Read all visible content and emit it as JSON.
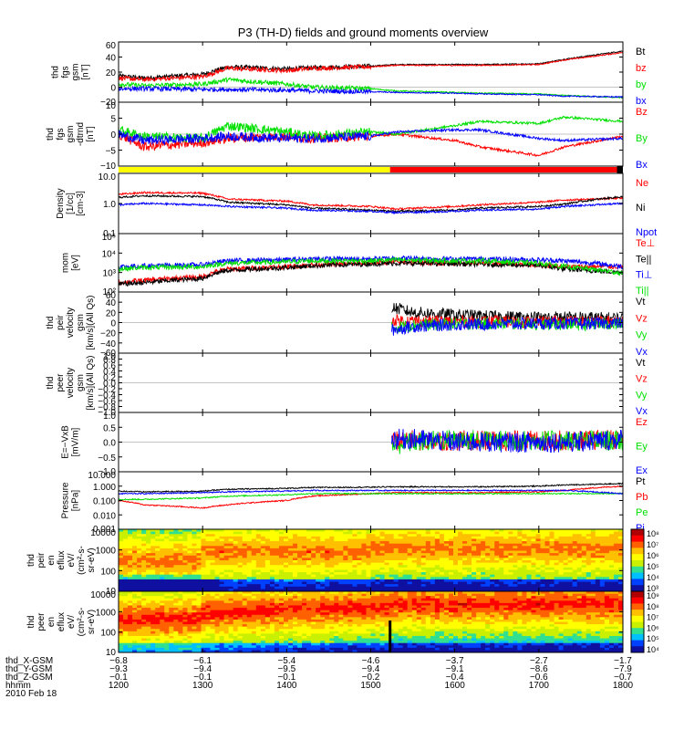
{
  "title": "P3 (TH-D) fields and ground moments overview",
  "colors": {
    "black": "#000000",
    "red": "#ff0000",
    "green": "#00e000",
    "blue": "#0000ff",
    "yellow": "#ffff00"
  },
  "chart_data": [
    {
      "id": "fgs_gsm",
      "type": "line",
      "ylabel": [
        "thd",
        "fgs",
        "gsm",
        "[nT]"
      ],
      "ylim": [
        -20,
        60
      ],
      "yticks": [
        "60",
        "40",
        "20",
        "0",
        "−20"
      ],
      "legend": [
        {
          "name": "Bt",
          "color": "black"
        },
        {
          "name": "bz",
          "color": "red"
        },
        {
          "name": "by",
          "color": "green"
        },
        {
          "name": "bx",
          "color": "blue"
        }
      ],
      "x": [
        1200,
        1230,
        1300,
        1330,
        1400,
        1430,
        1500,
        1530,
        1600,
        1630,
        1700,
        1730,
        1800
      ],
      "series": [
        {
          "name": "Bt",
          "color": "black",
          "values": [
            15,
            12,
            17,
            27,
            24,
            26,
            28,
            30,
            30,
            30,
            31,
            37,
            48
          ]
        },
        {
          "name": "bz",
          "color": "red",
          "values": [
            12,
            10,
            14,
            25,
            22,
            25,
            27,
            29,
            29,
            29,
            30,
            36,
            46
          ]
        },
        {
          "name": "by",
          "color": "green",
          "values": [
            4,
            2,
            4,
            10,
            4,
            0,
            -2,
            -5,
            -7,
            -8,
            -9,
            -11,
            -14
          ]
        },
        {
          "name": "bx",
          "color": "blue",
          "values": [
            -2,
            -2,
            -3,
            -3,
            -4,
            -5,
            -6,
            -7,
            -8,
            -9,
            -10,
            -12,
            -13
          ]
        }
      ]
    },
    {
      "id": "fgs_gsm_dtrnd",
      "type": "line",
      "ylabel": [
        "thd",
        "fgs",
        "gsm",
        "-dtrnd",
        "[nT]"
      ],
      "ylim": [
        -15,
        15
      ],
      "yticks": [
        "10",
        "5",
        "0",
        "−5",
        "−10"
      ],
      "legend": [
        {
          "name": "Bz",
          "color": "red"
        },
        {
          "name": "By",
          "color": "green"
        },
        {
          "name": "Bx",
          "color": "blue"
        }
      ],
      "x": [
        1200,
        1230,
        1300,
        1330,
        1400,
        1430,
        1500,
        1530,
        1600,
        1630,
        1700,
        1730,
        1800
      ],
      "series": [
        {
          "name": "Bz",
          "color": "red",
          "values": [
            0,
            -6,
            -4,
            -2,
            -1,
            -2,
            -1,
            0,
            -3,
            -6,
            -10,
            -6,
            -1
          ]
        },
        {
          "name": "By",
          "color": "green",
          "values": [
            2,
            -1,
            -2,
            4,
            1,
            -1,
            1,
            0,
            4,
            6,
            5,
            8,
            6
          ]
        },
        {
          "name": "Bx",
          "color": "blue",
          "values": [
            0,
            -3,
            -2,
            -1,
            -2,
            -2,
            -1,
            1,
            2,
            2,
            -2,
            -3,
            -2
          ]
        }
      ]
    },
    {
      "id": "mode_bar",
      "type": "bar",
      "segments": [
        {
          "from": 1200,
          "to": 1523,
          "color": "yellow"
        },
        {
          "from": 1523,
          "to": 1800,
          "color": "red"
        }
      ]
    },
    {
      "id": "density",
      "type": "line",
      "ylabel": [
        "Density",
        "[1/cc]",
        "[cm-3]"
      ],
      "ylim": [
        0.1,
        10
      ],
      "log": true,
      "yticks": [
        "10.0",
        "1.0",
        "0.1"
      ],
      "legend": [
        {
          "name": "Ne",
          "color": "red"
        },
        {
          "name": "Ni",
          "color": "black"
        },
        {
          "name": "Npot",
          "color": "blue"
        }
      ],
      "x": [
        1200,
        1230,
        1300,
        1330,
        1400,
        1430,
        1500,
        1530,
        1600,
        1630,
        1700,
        1730,
        1800
      ],
      "series": [
        {
          "name": "Ne",
          "color": "red",
          "values": [
            2,
            2.3,
            2.2,
            1.4,
            1.2,
            0.9,
            0.8,
            0.65,
            0.8,
            0.9,
            1.1,
            1.3,
            1.5
          ]
        },
        {
          "name": "Ni",
          "color": "black",
          "values": [
            1.6,
            1.8,
            1.7,
            1.1,
            0.9,
            0.7,
            0.6,
            0.55,
            0.6,
            0.7,
            0.8,
            0.95,
            1.7
          ]
        },
        {
          "name": "Npot",
          "color": "blue",
          "values": [
            0.9,
            1.0,
            0.9,
            0.8,
            0.7,
            0.6,
            0.55,
            0.5,
            0.55,
            0.6,
            0.65,
            0.8,
            1.0
          ]
        }
      ]
    },
    {
      "id": "temperature",
      "type": "line",
      "ylabel": [
        "mom",
        "[eV]"
      ],
      "ylim": [
        100,
        100000
      ],
      "log": true,
      "yticks": [
        "10⁵",
        "10⁴",
        "10³",
        "10²"
      ],
      "legend": [
        {
          "name": "Te⊥",
          "color": "red"
        },
        {
          "name": "Te||",
          "color": "black"
        },
        {
          "name": "Ti⊥",
          "color": "blue"
        },
        {
          "name": "Ti||",
          "color": "green"
        }
      ],
      "x": [
        1200,
        1230,
        1300,
        1330,
        1400,
        1430,
        1500,
        1530,
        1600,
        1630,
        1700,
        1730,
        1800
      ],
      "series": [
        {
          "name": "Te⊥",
          "color": "red",
          "values": [
            300,
            400,
            600,
            1500,
            2000,
            2500,
            3000,
            3500,
            3000,
            3000,
            2500,
            2000,
            2000
          ]
        },
        {
          "name": "Te||",
          "color": "black",
          "values": [
            250,
            300,
            500,
            1300,
            1800,
            2200,
            2800,
            3000,
            2800,
            2700,
            2300,
            1500,
            1000
          ]
        },
        {
          "name": "Ti⊥",
          "color": "blue",
          "values": [
            2000,
            2200,
            2500,
            4000,
            4500,
            5000,
            5000,
            5500,
            5000,
            5000,
            4500,
            4000,
            2000
          ]
        },
        {
          "name": "Ti||",
          "color": "green",
          "values": [
            1500,
            1800,
            2000,
            3000,
            3500,
            4000,
            4000,
            4500,
            4000,
            4000,
            3000,
            2000,
            900
          ]
        }
      ]
    },
    {
      "id": "peir_velocity",
      "type": "line",
      "ylabel": [
        "thd",
        "peir",
        "velocity",
        "gsm",
        "[km/s](All Qs)"
      ],
      "ylim": [
        -60,
        60
      ],
      "yticks": [
        "60",
        "40",
        "20",
        "0",
        "−20",
        "−40",
        "−60"
      ],
      "legend": [
        {
          "name": "Vt",
          "color": "black"
        },
        {
          "name": "Vz",
          "color": "red"
        },
        {
          "name": "Vy",
          "color": "green"
        },
        {
          "name": "Vx",
          "color": "blue"
        }
      ],
      "x": [
        1525,
        1550,
        1600,
        1650,
        1700,
        1750,
        1800
      ],
      "series": [
        {
          "name": "Vt",
          "color": "black",
          "values": [
            30,
            20,
            15,
            12,
            10,
            10,
            8
          ]
        },
        {
          "name": "Vz",
          "color": "red",
          "values": [
            5,
            3,
            2,
            2,
            1,
            2,
            2
          ]
        },
        {
          "name": "Vy",
          "color": "green",
          "values": [
            -10,
            -5,
            -3,
            -2,
            -3,
            -4,
            -2
          ]
        },
        {
          "name": "Vx",
          "color": "blue",
          "values": [
            -15,
            -8,
            -4,
            -3,
            -2,
            -2,
            -1
          ]
        }
      ]
    },
    {
      "id": "peer_velocity",
      "type": "line",
      "ylabel": [
        "thd",
        "peer",
        "velocity",
        "gsm",
        "[km/s](All Qs)"
      ],
      "ylim": [
        -1,
        1
      ],
      "yticks": [
        "1.0",
        "0.8",
        "0.6",
        "0.4",
        "0.2",
        "0.0",
        "−0.2",
        "−0.4",
        "−0.6",
        "−0.8",
        "−1.0"
      ],
      "legend": [
        {
          "name": "Vt",
          "color": "black"
        },
        {
          "name": "Vz",
          "color": "red"
        },
        {
          "name": "Vy",
          "color": "green"
        },
        {
          "name": "Vx",
          "color": "blue"
        }
      ],
      "x": [],
      "series": []
    },
    {
      "id": "efield",
      "type": "line",
      "ylabel": [
        "E=−VxB",
        "[mV/m]"
      ],
      "ylim": [
        -1,
        1
      ],
      "yticks": [
        "1.0",
        "0.5",
        "0.0",
        "−0.5",
        "−1.0"
      ],
      "legend": [
        {
          "name": "Ez",
          "color": "red"
        },
        {
          "name": "Ey",
          "color": "green"
        },
        {
          "name": "Ex",
          "color": "blue"
        }
      ],
      "x": [
        1525,
        1550,
        1600,
        1650,
        1700,
        1750,
        1800
      ],
      "series": [
        {
          "name": "Ez",
          "color": "red",
          "values": [
            0.05,
            0.05,
            0.05,
            0.05,
            0.05,
            0.05,
            0.1
          ]
        },
        {
          "name": "Ey",
          "color": "green",
          "values": [
            -0.1,
            0,
            0.1,
            0.05,
            0.05,
            0.05,
            0.05
          ]
        },
        {
          "name": "Ex",
          "color": "blue",
          "values": [
            0.1,
            0.1,
            0,
            0,
            0,
            0,
            0.1
          ]
        }
      ]
    },
    {
      "id": "pressure",
      "type": "line",
      "ylabel": [
        "Pressure",
        "[nPa]"
      ],
      "ylim": [
        0.001,
        10
      ],
      "log": true,
      "yticks": [
        "10.000",
        "1.000",
        "0.100",
        "0.010",
        "0.001"
      ],
      "legend": [
        {
          "name": "Pt",
          "color": "black"
        },
        {
          "name": "Pb",
          "color": "red"
        },
        {
          "name": "Pe",
          "color": "green"
        },
        {
          "name": "Pi",
          "color": "blue"
        }
      ],
      "x": [
        1200,
        1230,
        1300,
        1330,
        1400,
        1430,
        1500,
        1530,
        1600,
        1630,
        1700,
        1730,
        1800
      ],
      "series": [
        {
          "name": "Pt",
          "color": "black",
          "values": [
            0.45,
            0.4,
            0.45,
            0.6,
            0.7,
            0.8,
            0.85,
            0.9,
            0.9,
            0.9,
            1.0,
            1.2,
            1.5
          ]
        },
        {
          "name": "Pb",
          "color": "red",
          "values": [
            0.1,
            0.05,
            0.03,
            0.05,
            0.1,
            0.2,
            0.3,
            0.35,
            0.35,
            0.35,
            0.4,
            0.5,
            1.0
          ]
        },
        {
          "name": "Pe",
          "color": "green",
          "values": [
            0.12,
            0.12,
            0.15,
            0.2,
            0.25,
            0.3,
            0.3,
            0.3,
            0.3,
            0.3,
            0.3,
            0.3,
            0.3
          ]
        },
        {
          "name": "Pi",
          "color": "blue",
          "values": [
            0.3,
            0.3,
            0.35,
            0.4,
            0.45,
            0.5,
            0.5,
            0.5,
            0.5,
            0.5,
            0.5,
            0.5,
            0.3
          ]
        }
      ]
    },
    {
      "id": "peir_spec",
      "type": "heatmap",
      "ylabel": [
        "thd",
        "peir",
        "en",
        "eflux",
        "eV/",
        "(cm²-s-",
        "sr-eV)"
      ],
      "yticks": [
        "10000",
        "1000",
        "100",
        "10"
      ],
      "cbar": [
        "10⁸",
        "10⁷",
        "10⁶",
        "10⁵",
        "10⁴",
        "10³"
      ]
    },
    {
      "id": "peer_spec",
      "type": "heatmap",
      "ylabel": [
        "thd",
        "peer",
        "en",
        "eflux",
        "eV/",
        "(cm²-s-",
        "sr-eV)"
      ],
      "yticks": [
        "10000",
        "1000",
        "100",
        "10"
      ],
      "cbar": [
        "10⁹",
        "10⁸",
        "10⁷",
        "10⁶",
        "10⁵",
        "10⁴"
      ]
    }
  ],
  "xaxis": {
    "labels": [
      "thd_X-GSM",
      "thd_Y-GSM",
      "thd_Z-GSM",
      "hhmm",
      "2010 Feb 18"
    ],
    "ticks": [
      {
        "t": 1200,
        "x": "−6.8",
        "y": "−9.3",
        "z": "−0.1",
        "hhmm": "1200"
      },
      {
        "t": 1300,
        "x": "−6.1",
        "y": "−9.4",
        "z": "−0.1",
        "hhmm": "1300"
      },
      {
        "t": 1400,
        "x": "−5.4",
        "y": "−9.5",
        "z": "−0.1",
        "hhmm": "1400"
      },
      {
        "t": 1500,
        "x": "−4.6",
        "y": "−9.4",
        "z": "−0.2",
        "hhmm": "1500"
      },
      {
        "t": 1600,
        "x": "−3.7",
        "y": "−9.1",
        "z": "−0.4",
        "hhmm": "1600"
      },
      {
        "t": 1700,
        "x": "−2.7",
        "y": "−8.6",
        "z": "−0.6",
        "hhmm": "1700"
      },
      {
        "t": 1800,
        "x": "−1.7",
        "y": "−7.9",
        "z": "−0.7",
        "hhmm": "1800"
      }
    ]
  }
}
